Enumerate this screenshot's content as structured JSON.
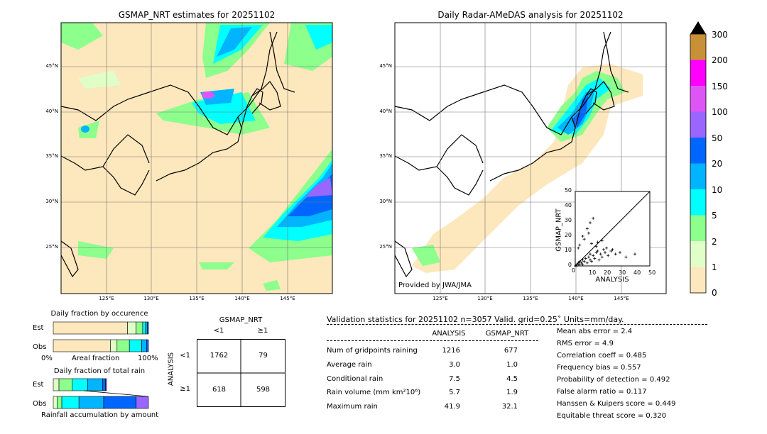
{
  "left_map": {
    "title": "GSMAP_NRT estimates for 20251102",
    "lat_labels": [
      "45°N",
      "40°N",
      "35°N",
      "30°N",
      "25°N"
    ],
    "lon_labels": [
      "125°E",
      "130°E",
      "135°E",
      "140°E",
      "145°E"
    ]
  },
  "right_map": {
    "title": "Daily Radar-AMeDAS analysis for 20251102",
    "lat_labels": [
      "45°N",
      "40°N",
      "35°N",
      "30°N",
      "25°N"
    ],
    "lon_labels": [
      "125°E",
      "130°E",
      "135°E",
      "140°E",
      "145°E"
    ],
    "credit": "Provided by JWA/JMA"
  },
  "colorbar": {
    "ticks": [
      "300",
      "200",
      "150",
      "100",
      "50",
      "20",
      "10",
      "5",
      "2",
      "1",
      "0"
    ],
    "colors": [
      "#c89137",
      "#ff00ff",
      "#dd55f5",
      "#9966ff",
      "#0066ff",
      "#00b4ff",
      "#00ffff",
      "#8cff8c",
      "#e0ffc8",
      "#fde7bc"
    ]
  },
  "scatter": {
    "xlabel": "ANALYSIS",
    "ylabel": "GSMAP_NRT",
    "xticks": [
      "0",
      "10",
      "20",
      "30",
      "40",
      "50"
    ],
    "yticks": [
      "0",
      "10",
      "20",
      "30",
      "40",
      "50"
    ]
  },
  "occurrence": {
    "title": "Daily fraction by occurence",
    "rows": [
      "Est",
      "Obs"
    ],
    "xlabel_left": "0%",
    "xlabel_mid": "Areal fraction",
    "xlabel_right": "100%"
  },
  "rain": {
    "title": "Daily fraction of total rain",
    "rows": [
      "Est",
      "Obs"
    ],
    "xlabel": "Rainfall accumulation by amount"
  },
  "contingency": {
    "title": "GSMAP_NRT",
    "col_labels": [
      "<1",
      "≥1"
    ],
    "row_title": "ANALYSIS",
    "row_labels": [
      "<1",
      "≥1"
    ],
    "cells": [
      [
        "1762",
        "79"
      ],
      [
        "618",
        "598"
      ]
    ]
  },
  "validation": {
    "header": "Validation statistics for 20251102  n=3057 Valid. grid=0.25˚ Units=mm/day.",
    "col_analysis": "ANALYSIS",
    "col_gsmap": "GSMAP_NRT",
    "rows": [
      {
        "label": "Num of gridpoints raining",
        "analysis": "1216",
        "gsmap": "677"
      },
      {
        "label": "Average rain",
        "analysis": "3.0",
        "gsmap": "1.0"
      },
      {
        "label": "Conditional rain",
        "analysis": "7.5",
        "gsmap": "4.5"
      },
      {
        "label": "Rain volume (mm km²10⁶)",
        "analysis": "5.7",
        "gsmap": "1.9"
      },
      {
        "label": "Maximum rain",
        "analysis": "41.9",
        "gsmap": "32.1"
      }
    ],
    "scores": [
      "Mean abs error =    2.4",
      "RMS error =    4.9",
      "Correlation coeff =  0.485",
      "Frequency bias =  0.557",
      "Probability of detection =  0.492",
      "False alarm ratio =  0.117",
      "Hanssen & Kuipers score =  0.449",
      "Equitable threat score =  0.320"
    ]
  },
  "chart_data": [
    {
      "type": "heatmap",
      "title": "GSMAP_NRT estimates for 20251102",
      "xlabel": "",
      "ylabel": "",
      "xlim": [
        120,
        150
      ],
      "ylim": [
        20,
        50
      ],
      "legend": "right",
      "color_levels": [
        0,
        1,
        2,
        5,
        10,
        20,
        50,
        100,
        150,
        200,
        300
      ]
    },
    {
      "type": "heatmap",
      "title": "Daily Radar-AMeDAS analysis for 20251102",
      "xlabel": "",
      "ylabel": "",
      "xlim": [
        120,
        150
      ],
      "ylim": [
        20,
        50
      ],
      "legend": "right",
      "color_levels": [
        0,
        1,
        2,
        5,
        10,
        20,
        50,
        100,
        150,
        200,
        300
      ]
    },
    {
      "type": "scatter",
      "xlabel": "ANALYSIS",
      "ylabel": "GSMAP_NRT",
      "xlim": [
        0,
        50
      ],
      "ylim": [
        0,
        50
      ],
      "series": [
        {
          "x": [
            0,
            1,
            1,
            2,
            2,
            3,
            3,
            4,
            5,
            5,
            6,
            7,
            8,
            9,
            10,
            10,
            11,
            12,
            13,
            14,
            15,
            16,
            17,
            18,
            19,
            20,
            22,
            24,
            27,
            30,
            34,
            40,
            5,
            8,
            10,
            12,
            15,
            3,
            2,
            6,
            9,
            11,
            14,
            18,
            21,
            25
          ],
          "y": [
            0,
            0,
            1,
            1,
            2,
            1,
            3,
            2,
            4,
            1,
            3,
            5,
            2,
            6,
            4,
            8,
            3,
            7,
            5,
            9,
            10,
            4,
            8,
            6,
            11,
            9,
            7,
            10,
            8,
            9,
            6,
            8,
            20,
            25,
            29,
            32,
            16,
            14,
            12,
            18,
            22,
            15,
            13,
            17,
            12,
            11
          ]
        }
      ]
    },
    {
      "type": "bar",
      "title": "Daily fraction by occurence",
      "categories": [
        "Est",
        "Obs"
      ],
      "series": [
        {
          "name": "0",
          "values": [
            0.78,
            0.6
          ]
        },
        {
          "name": "1",
          "values": [
            0.09,
            0.07
          ]
        },
        {
          "name": "2",
          "values": [
            0.07,
            0.13
          ]
        },
        {
          "name": "5",
          "values": [
            0.03,
            0.13
          ]
        },
        {
          "name": "10",
          "values": [
            0.02,
            0.05
          ]
        },
        {
          "name": "20",
          "values": [
            0.01,
            0.02
          ]
        }
      ]
    },
    {
      "type": "bar",
      "title": "Daily fraction of total rain",
      "categories": [
        "Est",
        "Obs"
      ],
      "series": [
        {
          "name": "1",
          "values": [
            0.06,
            0.04
          ]
        },
        {
          "name": "2",
          "values": [
            0.14,
            0.05
          ]
        },
        {
          "name": "5",
          "values": [
            0.16,
            0.18
          ]
        },
        {
          "name": "10",
          "values": [
            0.16,
            0.26
          ]
        },
        {
          "name": "20",
          "values": [
            0.03,
            0.34
          ]
        },
        {
          "name": "50",
          "values": [
            0.01,
            0.13
          ]
        }
      ]
    }
  ]
}
